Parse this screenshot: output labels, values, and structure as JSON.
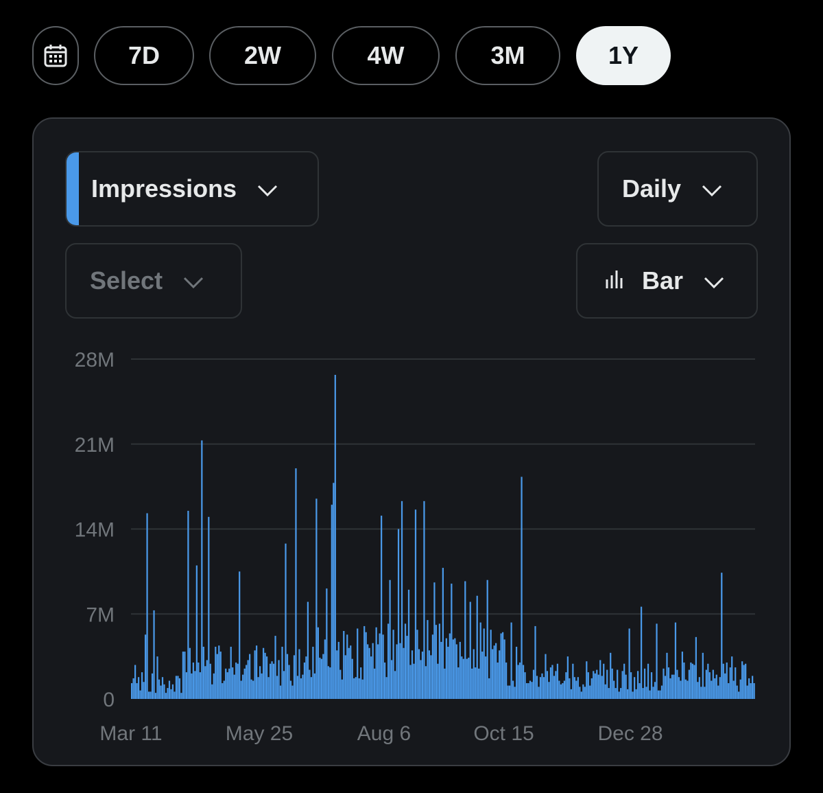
{
  "range_buttons": [
    {
      "label": "7D",
      "active": false
    },
    {
      "label": "2W",
      "active": false
    },
    {
      "label": "4W",
      "active": false
    },
    {
      "label": "3M",
      "active": false
    },
    {
      "label": "1Y",
      "active": true
    }
  ],
  "controls": {
    "metric_label": "Impressions",
    "interval_label": "Daily",
    "compare_placeholder": "Select",
    "chart_type_label": "Bar"
  },
  "icons": {
    "calendar": "calendar-icon",
    "chevron": "chevron-down-icon",
    "bar_chart": "bar-chart-icon"
  },
  "colors": {
    "accent": "#4a99e9",
    "bar": "#4a99e9",
    "active_pill": "#eff3f4"
  },
  "chart_data": {
    "type": "bar",
    "series_name": "",
    "ylim": [
      0,
      28
    ],
    "y_ticks": [
      "0",
      "7M",
      "14M",
      "21M",
      "28M"
    ],
    "y_tick_values": [
      0,
      7,
      14,
      21,
      28
    ],
    "x_tick_labels": [
      "Mar 11",
      "May 25",
      "Aug 6",
      "Oct 15",
      "Dec 28"
    ],
    "x_tick_index": [
      0,
      75,
      148,
      218,
      292
    ],
    "grid": true,
    "unit": "M",
    "values": []
  }
}
